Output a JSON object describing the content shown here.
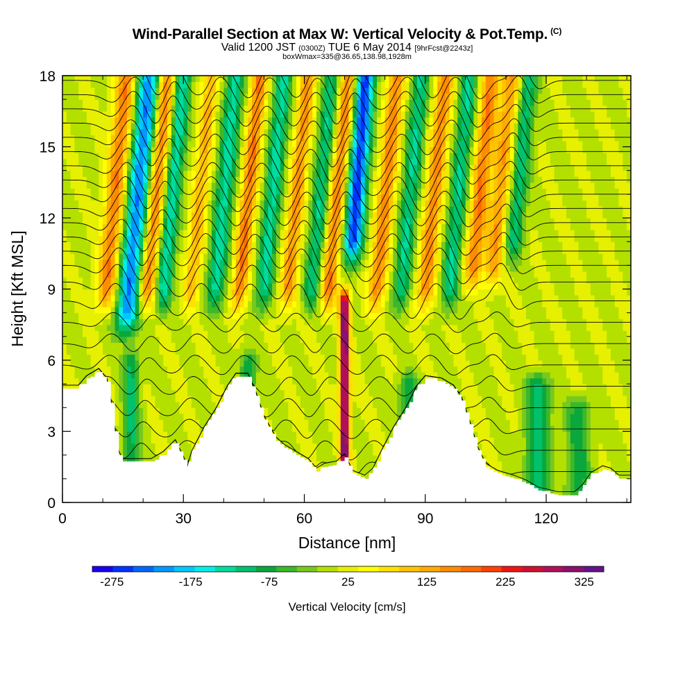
{
  "title": {
    "main": "Wind-Parallel Section at Max W: Vertical Velocity & Pot.Temp.",
    "copyright": "(C)",
    "valid_prefix": "Valid 1200 JST",
    "valid_utc": "(0300Z)",
    "valid_date": "TUE 6 May 2014",
    "forecast": "[9hrFcst@2243z]",
    "box_info": "boxWmax=335@36.65,138.98,1928m"
  },
  "chart_data": {
    "type": "heatmap",
    "title": "Wind-Parallel Section at Max W: Vertical Velocity & Pot.Temp.",
    "xlabel": "Distance [nm]",
    "ylabel": "Height [Kft MSL]",
    "xlim": [
      0,
      141
    ],
    "ylim": [
      0,
      18
    ],
    "x_ticks": [
      0,
      30,
      60,
      90,
      120
    ],
    "y_ticks": [
      0,
      3,
      6,
      9,
      12,
      15,
      18
    ],
    "colorbar": {
      "label": "Vertical Velocity [cm/s]",
      "tick_labels": [
        "-275",
        "-175",
        "-75",
        "25",
        "125",
        "225",
        "325"
      ],
      "tick_values": [
        -275,
        -175,
        -75,
        25,
        125,
        225,
        325
      ],
      "min": -300,
      "max": 350,
      "colors": [
        "#1a00f0",
        "#0033ff",
        "#0066ff",
        "#0099ff",
        "#00c8ff",
        "#00f0e8",
        "#00dc9e",
        "#00c26c",
        "#0aa83c",
        "#3cb82a",
        "#78c81e",
        "#b4e000",
        "#e6f000",
        "#ffff00",
        "#ffe000",
        "#ffc400",
        "#ffaa00",
        "#ff8c00",
        "#ff6a00",
        "#ff4000",
        "#f01414",
        "#d01030",
        "#b0105a",
        "#8c106e",
        "#641488"
      ]
    },
    "max_w_cm_s": 335,
    "max_w_location": "36.65,138.98",
    "max_w_height_m": 1928,
    "terrain_kft": [
      [
        0,
        4.8
      ],
      [
        4,
        4.8
      ],
      [
        6,
        5.2
      ],
      [
        9,
        5.5
      ],
      [
        11,
        5.1
      ],
      [
        12,
        4.2
      ],
      [
        13,
        3.0
      ],
      [
        14,
        2.0
      ],
      [
        15,
        1.7
      ],
      [
        22,
        1.7
      ],
      [
        25,
        2.0
      ],
      [
        28,
        2.5
      ],
      [
        30,
        1.8
      ],
      [
        31,
        1.4
      ],
      [
        32,
        2.0
      ],
      [
        35,
        3.0
      ],
      [
        38,
        3.8
      ],
      [
        41,
        4.8
      ],
      [
        43,
        5.3
      ],
      [
        46,
        5.3
      ],
      [
        48,
        4.5
      ],
      [
        50,
        3.5
      ],
      [
        53,
        2.6
      ],
      [
        55,
        2.3
      ],
      [
        58,
        2.0
      ],
      [
        61,
        1.7
      ],
      [
        63,
        1.3
      ],
      [
        65,
        1.5
      ],
      [
        68,
        1.6
      ],
      [
        70,
        1.9
      ],
      [
        72,
        1.2
      ],
      [
        75,
        1.0
      ],
      [
        77,
        1.3
      ],
      [
        79,
        2.0
      ],
      [
        82,
        3.0
      ],
      [
        85,
        3.8
      ],
      [
        88,
        4.8
      ],
      [
        90,
        5.2
      ],
      [
        94,
        5.1
      ],
      [
        97,
        4.8
      ],
      [
        99,
        4.3
      ],
      [
        101,
        3.3
      ],
      [
        103,
        2.2
      ],
      [
        105,
        1.5
      ],
      [
        108,
        1.2
      ],
      [
        112,
        1.0
      ],
      [
        115,
        0.8
      ],
      [
        118,
        0.5
      ],
      [
        123,
        0.3
      ],
      [
        127,
        0.3
      ],
      [
        129,
        0.6
      ],
      [
        131,
        1.1
      ],
      [
        134,
        1.4
      ],
      [
        136,
        1.3
      ],
      [
        138,
        1.0
      ],
      [
        141,
        1.0
      ]
    ],
    "w_cells": [
      {
        "x": 16,
        "half_width": 3.0,
        "w": -230,
        "top": 18,
        "bottom": 8,
        "tilt": 0.55
      },
      {
        "x": 11,
        "half_width": 2.5,
        "w": 160,
        "top": 18,
        "bottom": 9,
        "tilt": 0.55
      },
      {
        "x": 25,
        "half_width": 2.2,
        "w": -150,
        "top": 18,
        "bottom": 9,
        "tilt": 0.55
      },
      {
        "x": 21,
        "half_width": 2.2,
        "w": 170,
        "top": 18,
        "bottom": 9,
        "tilt": 0.55
      },
      {
        "x": 32,
        "half_width": 2.0,
        "w": 110,
        "top": 18,
        "bottom": 9,
        "tilt": 0.55
      },
      {
        "x": 38,
        "half_width": 2.4,
        "w": -140,
        "top": 18,
        "bottom": 9,
        "tilt": 0.55
      },
      {
        "x": 44,
        "half_width": 2.0,
        "w": 160,
        "top": 18,
        "bottom": 9,
        "tilt": 0.55
      },
      {
        "x": 50,
        "half_width": 2.2,
        "w": -140,
        "top": 18,
        "bottom": 9,
        "tilt": 0.55
      },
      {
        "x": 56,
        "half_width": 2.0,
        "w": 140,
        "top": 18,
        "bottom": 9,
        "tilt": 0.55
      },
      {
        "x": 62,
        "half_width": 2.2,
        "w": -130,
        "top": 18,
        "bottom": 9,
        "tilt": 0.55
      },
      {
        "x": 66,
        "half_width": 2.2,
        "w": 160,
        "top": 18,
        "bottom": 9,
        "tilt": 0.55
      },
      {
        "x": 72,
        "half_width": 2.4,
        "w": -275,
        "top": 18,
        "bottom": 11,
        "tilt": 0.45
      },
      {
        "x": 70,
        "half_width": 1.2,
        "w": 335,
        "top": 8.5,
        "bottom": 2,
        "tilt": 0.0
      },
      {
        "x": 78,
        "half_width": 2.2,
        "w": 150,
        "top": 18,
        "bottom": 9,
        "tilt": 0.55
      },
      {
        "x": 84,
        "half_width": 2.2,
        "w": -130,
        "top": 18,
        "bottom": 9,
        "tilt": 0.55
      },
      {
        "x": 90,
        "half_width": 2.2,
        "w": 150,
        "top": 18,
        "bottom": 9,
        "tilt": 0.55
      },
      {
        "x": 96,
        "half_width": 2.2,
        "w": -130,
        "top": 18,
        "bottom": 9,
        "tilt": 0.55
      },
      {
        "x": 102,
        "half_width": 2.2,
        "w": 160,
        "top": 18,
        "bottom": 10,
        "tilt": 0.55
      },
      {
        "x": 107,
        "half_width": 2.2,
        "w": 130,
        "top": 18,
        "bottom": 10,
        "tilt": 0.55
      },
      {
        "x": 112,
        "half_width": 2.2,
        "w": -120,
        "top": 18,
        "bottom": 11,
        "tilt": 0.55
      },
      {
        "x": 17,
        "half_width": 2.0,
        "w": -110,
        "top": 6,
        "bottom": 1.7,
        "tilt": 0.0
      },
      {
        "x": 46,
        "half_width": 2.0,
        "w": -100,
        "top": 6,
        "bottom": 2,
        "tilt": 0.0
      },
      {
        "x": 86,
        "half_width": 2.5,
        "w": -90,
        "top": 5,
        "bottom": 2,
        "tilt": 0.0
      },
      {
        "x": 118,
        "half_width": 3.0,
        "w": -120,
        "top": 5,
        "bottom": 0.5,
        "tilt": 0.0
      },
      {
        "x": 128,
        "half_width": 3.0,
        "w": -90,
        "top": 4,
        "bottom": 0.5,
        "tilt": 0.0
      }
    ],
    "theta_contours_kft": [
      0.4,
      1.3,
      2.2,
      3.1,
      4.0,
      4.9,
      5.8,
      6.7,
      7.6,
      8.5,
      9.3,
      10.0,
      10.6,
      11.2,
      11.8,
      12.4,
      13.0,
      13.6,
      14.2,
      14.8,
      15.4,
      16.0,
      16.6,
      17.2,
      17.8
    ]
  }
}
